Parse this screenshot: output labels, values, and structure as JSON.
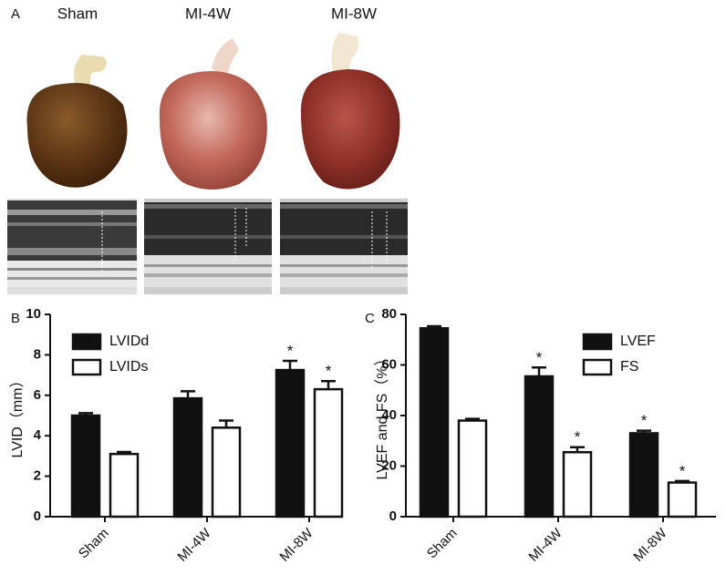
{
  "panel_a": {
    "label": "A",
    "groups": [
      "Sham",
      "MI-4W",
      "MI-8W"
    ]
  },
  "chart_data": [
    {
      "type": "bar",
      "panel": "B",
      "y_label": "LVID（mm）",
      "categories": [
        "Sham",
        "MI-4W",
        "MI-8W"
      ],
      "series": [
        {
          "name": "LVIDd",
          "color": "#111111",
          "values": [
            5.0,
            5.85,
            7.25
          ],
          "errors": [
            0.12,
            0.35,
            0.45
          ],
          "significance": [
            null,
            null,
            "*"
          ]
        },
        {
          "name": "LVIDs",
          "color": "#ffffff",
          "values": [
            3.1,
            4.4,
            6.3
          ],
          "errors": [
            0.1,
            0.35,
            0.4
          ],
          "significance": [
            null,
            null,
            "*"
          ]
        }
      ],
      "ylim": [
        0,
        10
      ],
      "yticks": [
        0,
        2,
        4,
        6,
        8,
        10
      ],
      "legend": "upper left"
    },
    {
      "type": "bar",
      "panel": "C",
      "y_label": "LVEF and FS（%）",
      "categories": [
        "Sham",
        "MI-4W",
        "MI-8W"
      ],
      "series": [
        {
          "name": "LVEF",
          "color": "#111111",
          "values": [
            74.5,
            55.5,
            33
          ],
          "errors": [
            0.8,
            3.5,
            1
          ],
          "significance": [
            null,
            "*",
            "*"
          ]
        },
        {
          "name": "FS",
          "color": "#ffffff",
          "values": [
            38,
            25.5,
            13.5
          ],
          "errors": [
            0.7,
            2,
            0.6
          ],
          "significance": [
            null,
            "*",
            "*"
          ]
        }
      ],
      "ylim": [
        0,
        80
      ],
      "yticks": [
        0,
        20,
        40,
        60,
        80
      ],
      "legend": "upper right"
    }
  ]
}
